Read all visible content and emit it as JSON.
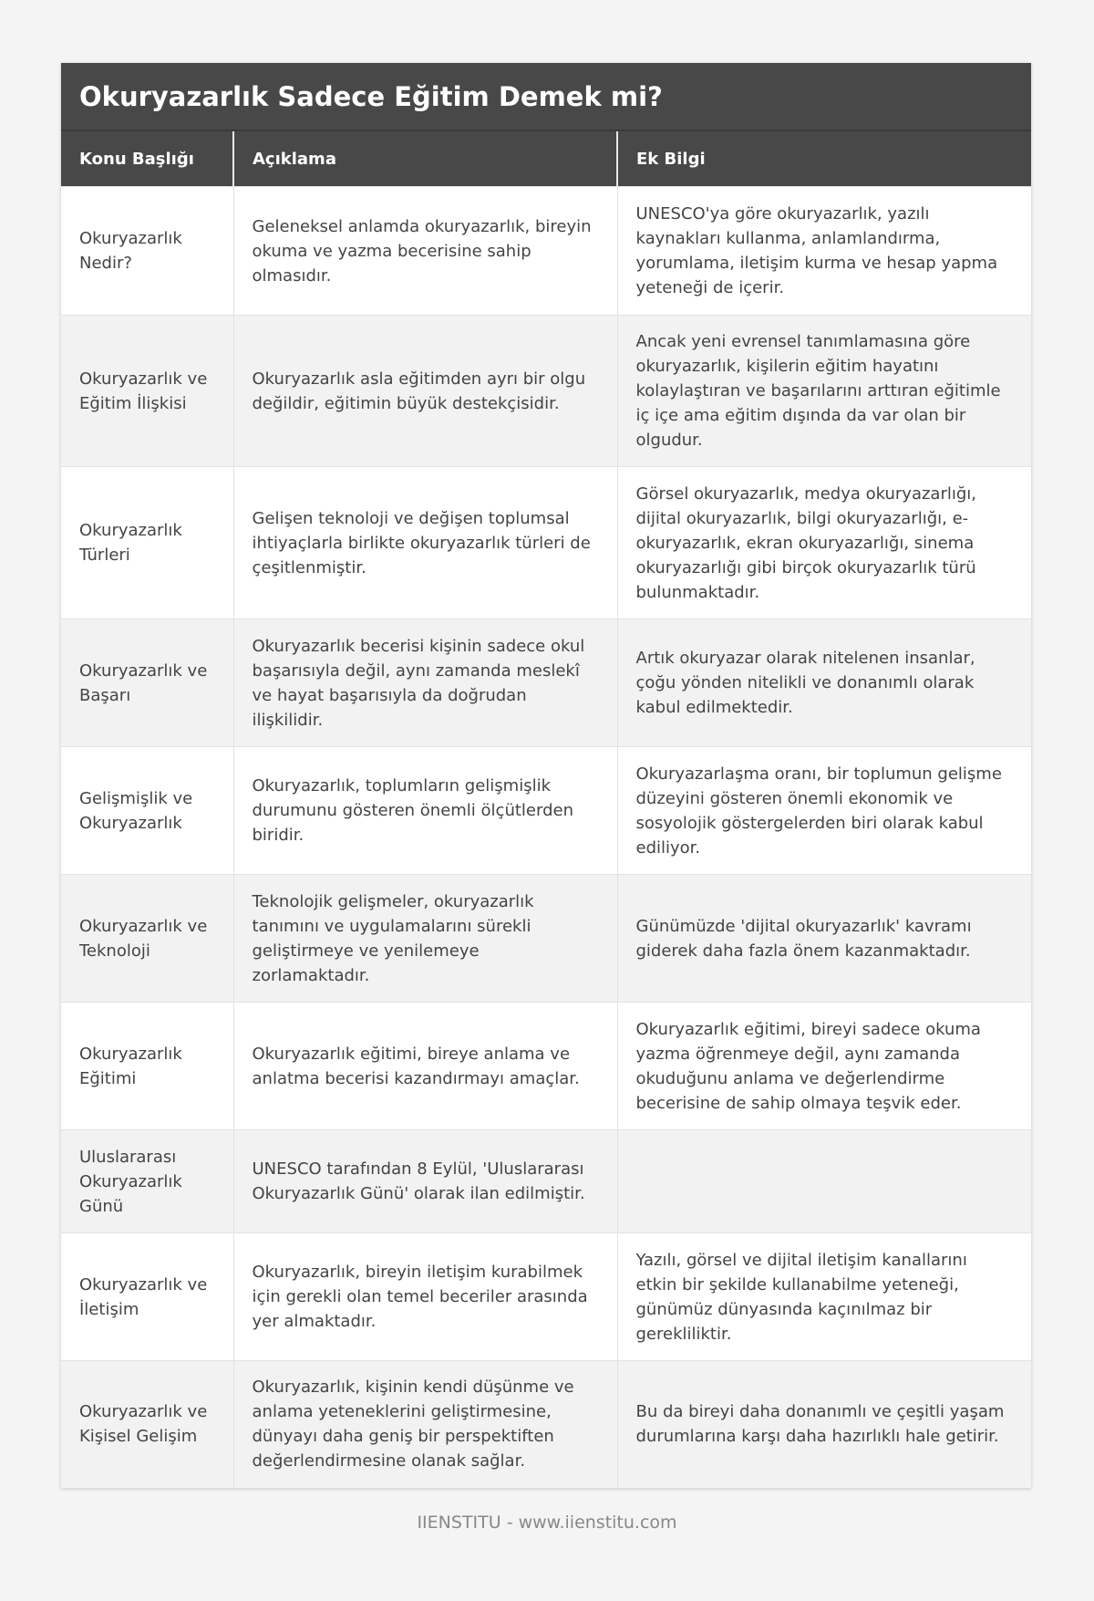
{
  "title": "Okuryazarlık Sadece Eğitim Demek mi?",
  "headers": [
    "Konu Başlığı",
    "Açıklama",
    "Ek Bilgi"
  ],
  "rows": [
    [
      "Okuryazarlık Nedir?",
      "Geleneksel anlamda okuryazarlık, bireyin okuma ve yazma becerisine sahip olmasıdır.",
      "UNESCO'ya göre okuryazarlık, yazılı kaynakları kullanma, anlamlandırma, yorumlama, iletişim kurma ve hesap yapma yeteneği de içerir."
    ],
    [
      "Okuryazarlık ve Eğitim İlişkisi",
      "Okuryazarlık asla eğitimden ayrı bir olgu değildir, eğitimin büyük destekçisidir.",
      "Ancak yeni evrensel tanımlamasına göre okuryazarlık, kişilerin eğitim hayatını kolaylaştıran ve başarılarını arttıran eğitimle iç içe ama eğitim dışında da var olan bir olgudur."
    ],
    [
      "Okuryazarlık Türleri",
      "Gelişen teknoloji ve değişen toplumsal ihtiyaçlarla birlikte okuryazarlık türleri de çeşitlenmiştir.",
      "Görsel okuryazarlık, medya okuryazarlığı, dijital okuryazarlık, bilgi okuryazarlığı, e-okuryazarlık, ekran okuryazarlığı, sinema okuryazarlığı gibi birçok okuryazarlık türü bulunmaktadır."
    ],
    [
      "Okuryazarlık ve Başarı",
      "Okuryazarlık becerisi kişinin sadece okul başarısıyla değil, aynı zamanda meslekî ve hayat başarısıyla da doğrudan ilişkilidir.",
      "Artık okuryazar olarak nitelenen insanlar, çoğu yönden nitelikli ve donanımlı olarak kabul edilmektedir."
    ],
    [
      "Gelişmişlik ve Okuryazarlık",
      "Okuryazarlık, toplumların gelişmişlik durumunu gösteren önemli ölçütlerden biridir.",
      "Okuryazarlaşma oranı, bir toplumun gelişme düzeyini gösteren önemli ekonomik ve sosyolojik göstergelerden biri olarak kabul ediliyor."
    ],
    [
      "Okuryazarlık ve Teknoloji",
      "Teknolojik gelişmeler, okuryazarlık tanımını ve uygulamalarını sürekli geliştirmeye ve yenilemeye zorlamaktadır.",
      "Günümüzde 'dijital okuryazarlık' kavramı giderek daha fazla önem kazanmaktadır."
    ],
    [
      "Okuryazarlık Eğitimi",
      "Okuryazarlık eğitimi, bireye anlama ve anlatma becerisi kazandırmayı amaçlar.",
      "Okuryazarlık eğitimi, bireyi sadece okuma yazma öğrenmeye değil, aynı zamanda okuduğunu anlama ve değerlendirme becerisine de sahip olmaya teşvik eder."
    ],
    [
      "Uluslararası Okuryazarlık Günü",
      "UNESCO tarafından 8 Eylül, 'Uluslararası Okuryazarlık Günü' olarak ilan edilmiştir.",
      ""
    ],
    [
      "Okuryazarlık ve İletişim",
      "Okuryazarlık, bireyin iletişim kurabilmek için gerekli olan temel beceriler arasında yer almaktadır.",
      "Yazılı, görsel ve dijital iletişim kanallarını etkin bir şekilde kullanabilme yeteneği, günümüz dünyasında kaçınılmaz bir gerekliliktir."
    ],
    [
      "Okuryazarlık ve Kişisel Gelişim",
      "Okuryazarlık, kişinin kendi düşünme ve anlama yeteneklerini geliştirmesine, dünyayı daha geniş bir perspektiften değerlendirmesine olanak sağlar.",
      "Bu da bireyi daha donanımlı ve çeşitli yaşam durumlarına karşı daha hazırlıklı hale getirir."
    ]
  ],
  "footer": "IIENSTITU - www.iienstitu.com"
}
